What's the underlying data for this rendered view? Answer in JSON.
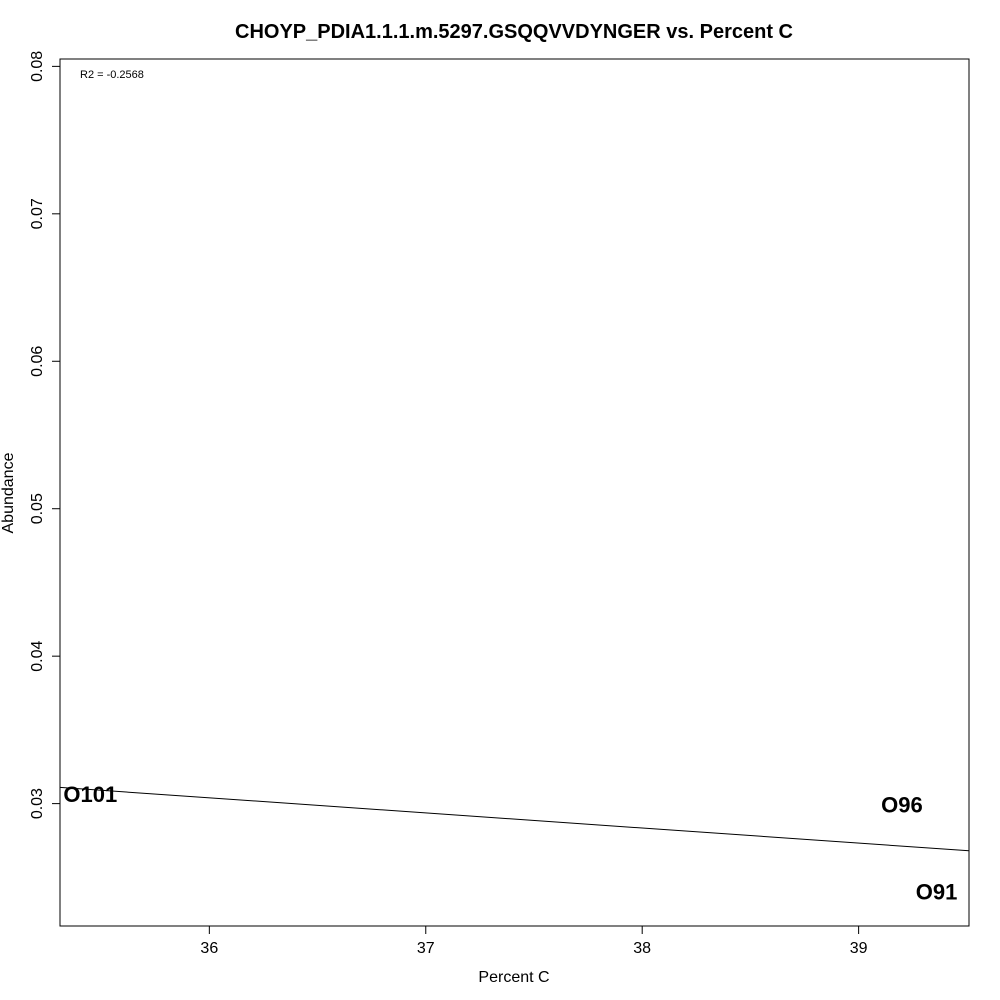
{
  "chart_data": {
    "type": "scatter",
    "title": "CHOYP_PDIA1.1.1.m.5297.GSQQVVDYNGER vs. Percent C",
    "xlabel": "Percent C",
    "ylabel": "Abundance",
    "annotation": "R2 = -0.2568",
    "xlim": [
      35.31,
      39.51
    ],
    "ylim": [
      0.0217,
      0.0805
    ],
    "xticks": [
      36,
      37,
      38,
      39
    ],
    "yticks": [
      0.03,
      0.04,
      0.05,
      0.06,
      0.07,
      0.08
    ],
    "xtick_labels": [
      "36",
      "37",
      "38",
      "39"
    ],
    "ytick_labels": [
      "0.03",
      "0.04",
      "0.05",
      "0.06",
      "0.07",
      "0.08"
    ],
    "points": [
      {
        "label": "O101",
        "x": 35.45,
        "y": 0.0305
      },
      {
        "label": "O96",
        "x": 39.2,
        "y": 0.0298
      },
      {
        "label": "O91",
        "x": 39.36,
        "y": 0.0239
      }
    ],
    "fit_line": {
      "x": [
        35.31,
        39.51
      ],
      "y": [
        0.0311,
        0.0268
      ]
    },
    "grid": false,
    "legend": "none"
  }
}
